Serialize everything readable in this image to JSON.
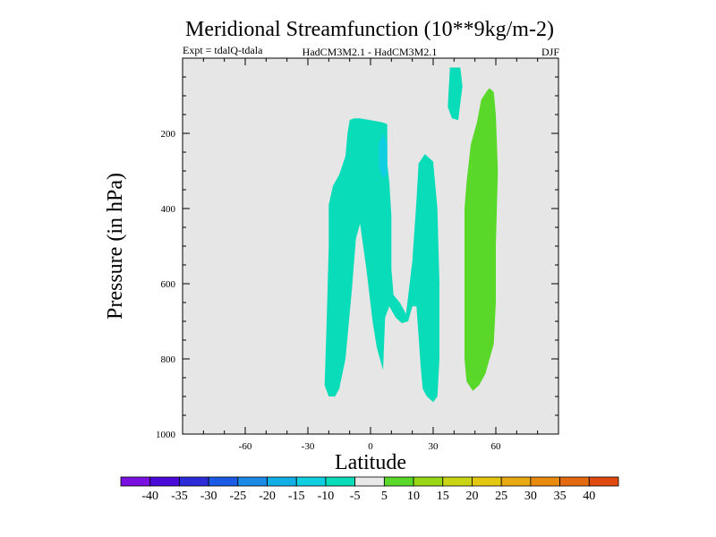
{
  "chart_data": {
    "type": "contour",
    "title": "Meridional Streamfunction (10**9kg/m-2)",
    "expt": "Expt = tdalQ-tdala",
    "models": "HadCM3M2.1 - HadCM3M2.1",
    "season": "DJF",
    "xlabel": "Latitude",
    "ylabel": "Pressure (in hPa)",
    "xlim": [
      -90,
      90
    ],
    "ylim": [
      1000,
      0
    ],
    "x_ticks": [
      {
        "value": -60,
        "label": "-60"
      },
      {
        "value": -30,
        "label": "-30"
      },
      {
        "value": 0,
        "label": "0"
      },
      {
        "value": 30,
        "label": "30"
      },
      {
        "value": 60,
        "label": "60"
      }
    ],
    "y_ticks": [
      {
        "value": 200,
        "label": "200"
      },
      {
        "value": 400,
        "label": "400"
      },
      {
        "value": 600,
        "label": "600"
      },
      {
        "value": 800,
        "label": "800"
      },
      {
        "value": 1000,
        "label": "1000"
      }
    ],
    "background_color": "#e6e6e6",
    "levels": [
      "-40",
      "-35",
      "-30",
      "-25",
      "-20",
      "-15",
      "-10",
      "-5",
      "5",
      "10",
      "15",
      "20",
      "25",
      "30",
      "35",
      "40"
    ],
    "colorbar_colors": [
      "#7a10e0",
      "#4a0ad8",
      "#2b2bd8",
      "#1a5ae6",
      "#1a8ae6",
      "#10b0e6",
      "#10cfe0",
      "#08dcb8",
      "#e8e8e8",
      "#5ad82a",
      "#98d616",
      "#c8d414",
      "#e4c810",
      "#e8aa10",
      "#e88a10",
      "#e46a10",
      "#e04a10"
    ],
    "regions": [
      {
        "name": "region-sh-cell",
        "range": "-10 to -5",
        "color": "#08dcb8",
        "points": [
          [
            -20,
            900
          ],
          [
            -22,
            870
          ],
          [
            -21,
            700
          ],
          [
            -20,
            500
          ],
          [
            -20,
            390
          ],
          [
            -18,
            340
          ],
          [
            -15,
            310
          ],
          [
            -12,
            260
          ],
          [
            -11,
            200
          ],
          [
            -10,
            165
          ],
          [
            -8,
            160
          ],
          [
            -5,
            160
          ],
          [
            0,
            165
          ],
          [
            5,
            170
          ],
          [
            8,
            175
          ],
          [
            8,
            220
          ],
          [
            8,
            280
          ],
          [
            9,
            330
          ],
          [
            10,
            420
          ],
          [
            10,
            560
          ],
          [
            11,
            630
          ],
          [
            14,
            650
          ],
          [
            17,
            680
          ],
          [
            20,
            540
          ],
          [
            22,
            380
          ],
          [
            23,
            280
          ],
          [
            26,
            255
          ],
          [
            30,
            275
          ],
          [
            32,
            400
          ],
          [
            33,
            600
          ],
          [
            33,
            800
          ],
          [
            32,
            900
          ],
          [
            30,
            915
          ],
          [
            27,
            900
          ],
          [
            25,
            880
          ],
          [
            24,
            820
          ],
          [
            23,
            740
          ],
          [
            22,
            660
          ],
          [
            20,
            660
          ],
          [
            18,
            700
          ],
          [
            15,
            705
          ],
          [
            12,
            690
          ],
          [
            9,
            660
          ],
          [
            7,
            690
          ],
          [
            6,
            830
          ],
          [
            4,
            790
          ],
          [
            3,
            770
          ],
          [
            1,
            700
          ],
          [
            -2,
            560
          ],
          [
            -5,
            440
          ],
          [
            -7,
            480
          ],
          [
            -9,
            620
          ],
          [
            -12,
            800
          ],
          [
            -15,
            880
          ],
          [
            -17,
            900
          ],
          [
            -20,
            900
          ]
        ]
      },
      {
        "name": "region-tropical-core",
        "range": "-15 to -10",
        "color": "#10cfe0",
        "points": [
          [
            4,
            230
          ],
          [
            6,
            200
          ],
          [
            8,
            230
          ],
          [
            8,
            310
          ],
          [
            6,
            320
          ],
          [
            4,
            290
          ],
          [
            4,
            230
          ]
        ]
      },
      {
        "name": "region-upper-cell",
        "range": "-10 to -5",
        "color": "#08dcb8",
        "points": [
          [
            38,
            25
          ],
          [
            43,
            25
          ],
          [
            44,
            75
          ],
          [
            43,
            120
          ],
          [
            42,
            165
          ],
          [
            39,
            160
          ],
          [
            37,
            130
          ],
          [
            38,
            25
          ]
        ]
      },
      {
        "name": "region-nh-cell",
        "range": "5 to 10",
        "color": "#5ad82a",
        "points": [
          [
            57,
            80
          ],
          [
            59,
            90
          ],
          [
            60,
            150
          ],
          [
            61,
            300
          ],
          [
            60,
            500
          ],
          [
            60,
            650
          ],
          [
            59,
            760
          ],
          [
            57,
            800
          ],
          [
            55,
            840
          ],
          [
            52,
            870
          ],
          [
            49,
            885
          ],
          [
            46,
            860
          ],
          [
            45,
            800
          ],
          [
            45,
            650
          ],
          [
            45,
            500
          ],
          [
            45,
            400
          ],
          [
            46,
            330
          ],
          [
            48,
            230
          ],
          [
            51,
            170
          ],
          [
            53,
            110
          ],
          [
            56,
            85
          ],
          [
            57,
            80
          ]
        ]
      }
    ]
  }
}
